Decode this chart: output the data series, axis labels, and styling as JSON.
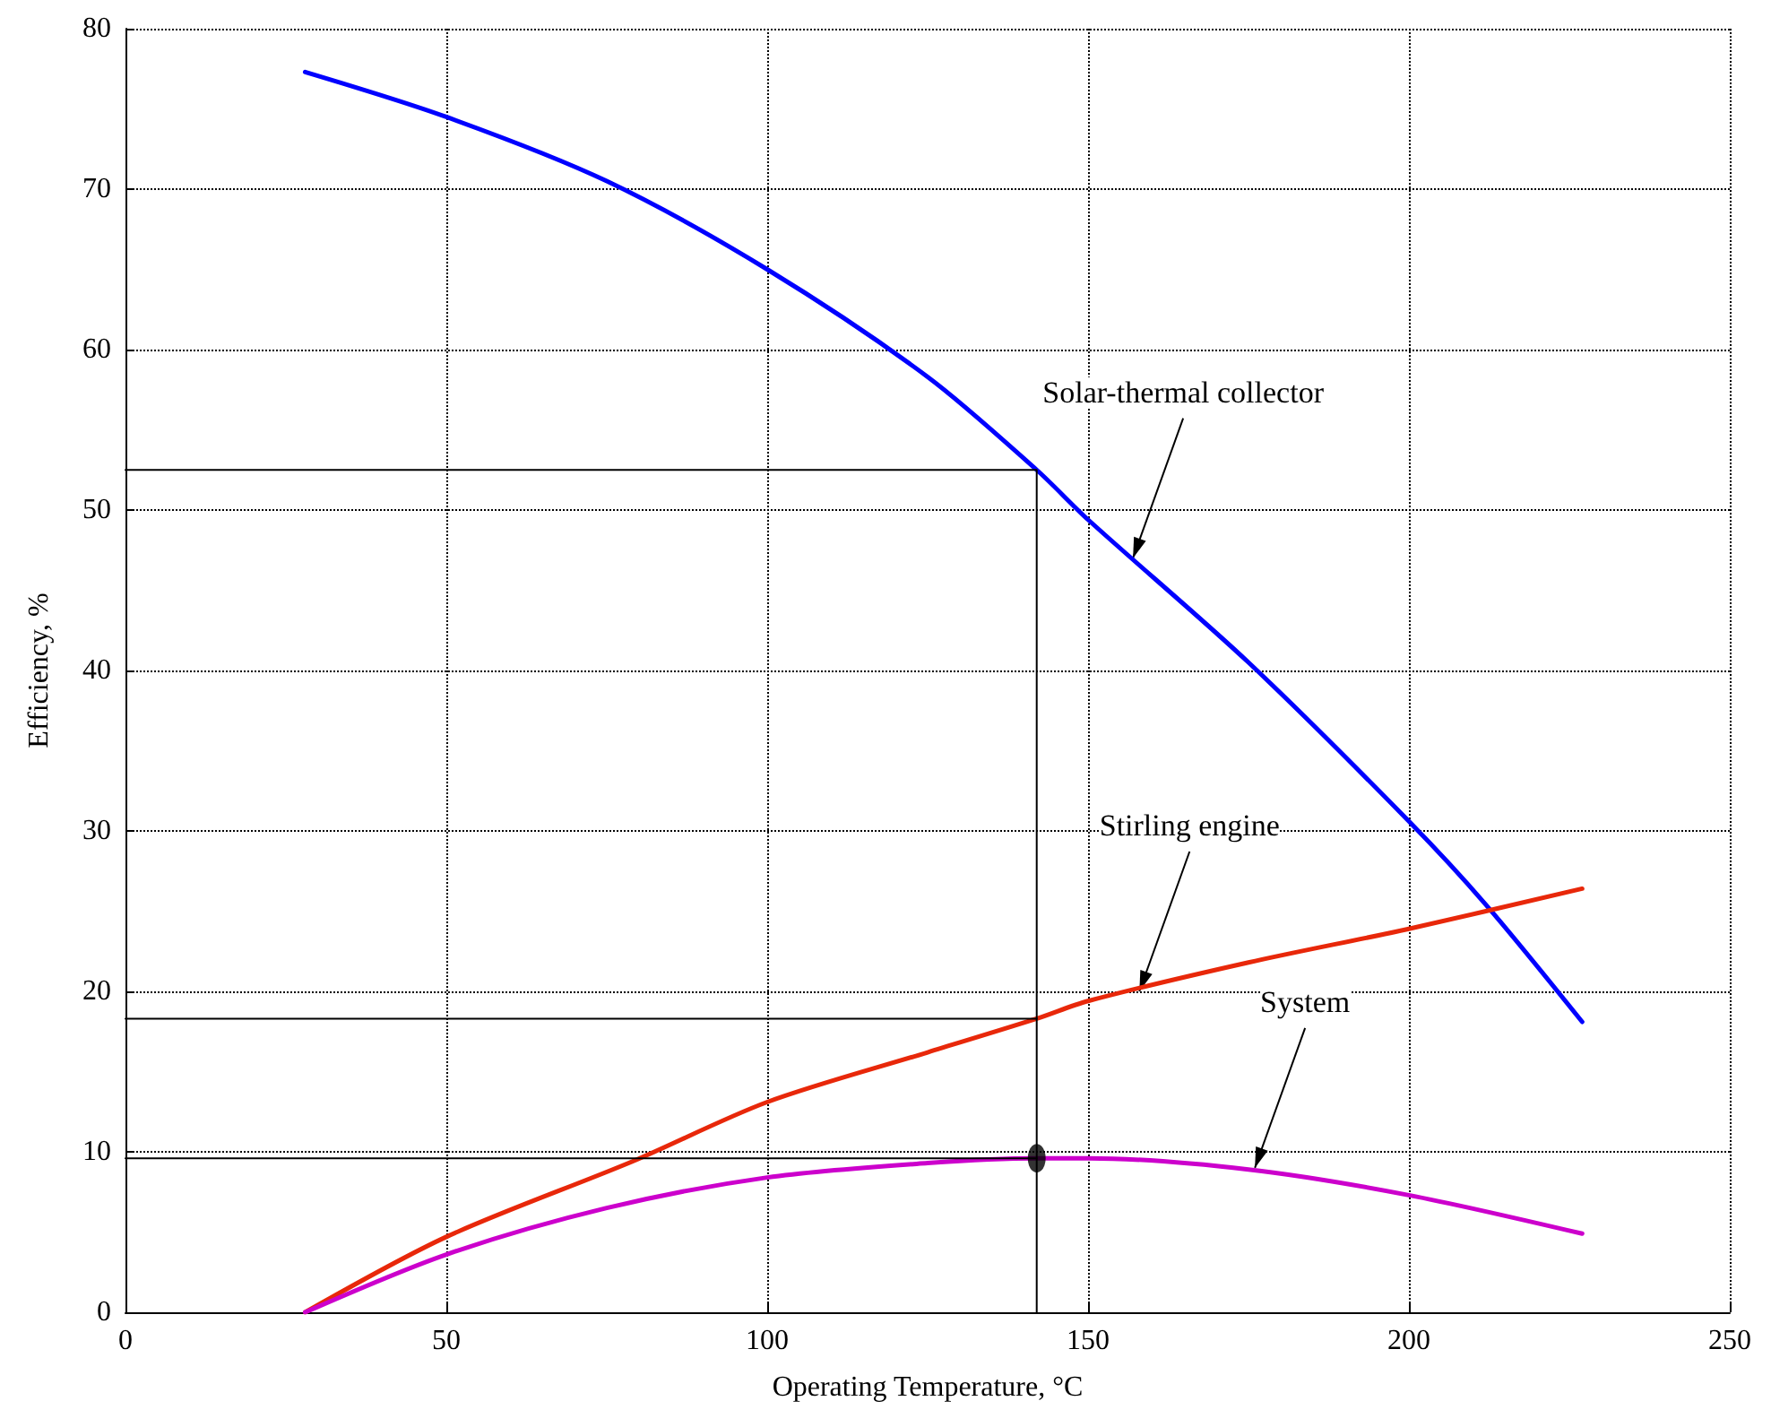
{
  "chart_data": {
    "type": "line",
    "xlabel": "Operating Temperature, °C",
    "ylabel": "Efficiency, %",
    "xlim": [
      0,
      250
    ],
    "xticks": [
      0,
      50,
      100,
      150,
      200,
      250
    ],
    "ylim": [
      0,
      80
    ],
    "yticks": [
      0,
      10,
      20,
      30,
      40,
      50,
      60,
      70,
      80
    ],
    "grid": true,
    "marker": "none",
    "line_style": "solid",
    "series": [
      {
        "color": "#0000ff",
        "x": [
          28,
          50,
          75,
          100,
          125,
          142,
          150,
          175,
          200,
          212,
          227
        ],
        "values": [
          77.3,
          74.5,
          70.5,
          65,
          58.3,
          52.5,
          49.4,
          40.5,
          30.6,
          25.4,
          18.1
        ]
      },
      {
        "color": "#e8280a",
        "x": [
          28,
          50,
          79,
          100,
          125,
          142,
          150,
          175,
          200,
          227
        ],
        "values": [
          0,
          4.7,
          9.4,
          13.1,
          16.2,
          18.3,
          19.4,
          21.8,
          23.9,
          26.4
        ]
      },
      {
        "color": "#cc00cc",
        "x": [
          28,
          50,
          75,
          100,
          125,
          142,
          150,
          175,
          200,
          227
        ],
        "values": [
          0,
          3.6,
          6.5,
          8.4,
          9.3,
          9.6,
          9.6,
          8.9,
          7.3,
          4.9
        ]
      },
      {
        "color": "#000000",
        "x": [
          0,
          142,
          142
        ],
        "values": [
          52.5,
          52.5,
          0
        ]
      },
      {
        "color": "#000000",
        "x": [
          0,
          142
        ],
        "values": [
          18.3,
          18.3
        ]
      },
      {
        "color": "#000000",
        "x": [
          0,
          142
        ],
        "values": [
          9.6,
          9.6
        ]
      },
      {
        "type": "scatter",
        "marker": "circle",
        "color": "#000000",
        "x": [
          142
        ],
        "values": [
          9.6
        ]
      }
    ],
    "annotations": [
      {
        "text": "Solar-thermal collector",
        "x": 157,
        "y": 47
      },
      {
        "text": "Stirling engine",
        "x": 158,
        "y": 20
      },
      {
        "text": "System",
        "x": 176,
        "y": 9
      }
    ]
  }
}
